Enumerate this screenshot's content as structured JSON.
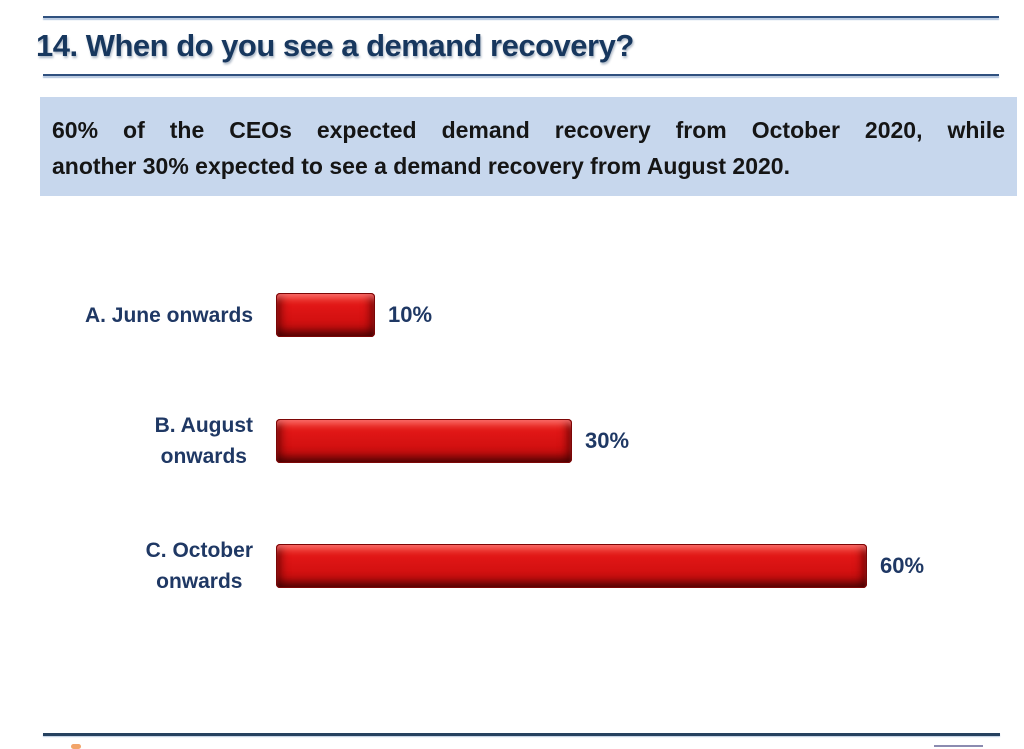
{
  "slide": {
    "title": "14. When do you see a demand recovery?",
    "summary": {
      "line1": "60% of the CEOs expected demand recovery from October 2020, while",
      "line2": "another 30% expected to see a demand recovery from August 2020."
    }
  },
  "colors": {
    "navy_text": "#1f3864",
    "title_navy": "#17375e",
    "bar_red": "#d41111",
    "bar_red_dark": "#7c0606",
    "summary_bg": "#c7d7ed",
    "rule_navy": "#30517f"
  },
  "chart_data": {
    "type": "bar",
    "orientation": "horizontal",
    "title": "",
    "xlabel": "",
    "ylabel": "",
    "categories": [
      "A. June onwards",
      "B. August onwards",
      "C. October onwards"
    ],
    "category_lines": [
      [
        "A. June onwards"
      ],
      [
        "B. August",
        "onwards"
      ],
      [
        "C. October",
        "onwards"
      ]
    ],
    "values": [
      10,
      30,
      60
    ],
    "value_labels": [
      "10%",
      "30%",
      "60%"
    ],
    "unit": "%",
    "xlim": [
      0,
      100
    ],
    "bar_color": "#d41111",
    "legend": false,
    "gridlines": false,
    "axes_visible": false
  }
}
